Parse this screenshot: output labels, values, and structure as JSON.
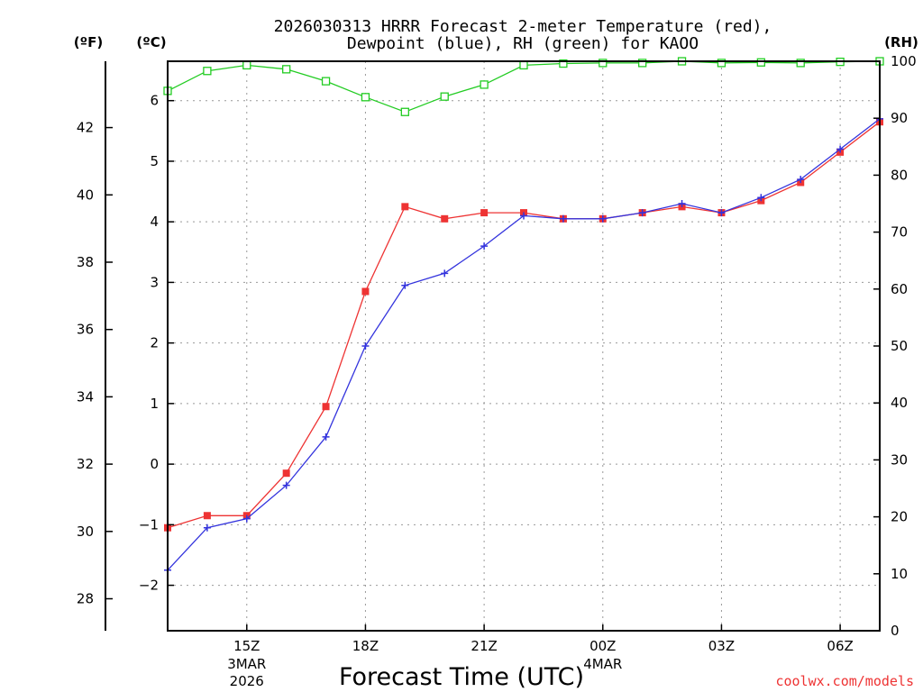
{
  "chart_data": {
    "type": "line",
    "title_line1": "2026030313 HRRR Forecast 2-meter Temperature (red),",
    "title_line2": "Dewpoint (blue), RH (green) for KAOO",
    "units": {
      "fahrenheit": "(ºF)",
      "celsius": "(ºC)",
      "rh": "(RH)"
    },
    "xlabel": "Forecast Time (UTC)",
    "credit": "coolwx.com/models",
    "x_hours": [
      13,
      14,
      15,
      16,
      17,
      18,
      19,
      20,
      21,
      22,
      23,
      24,
      25,
      26,
      27,
      28,
      29,
      30,
      31
    ],
    "x_ticks": [
      {
        "hour": 15,
        "label": "15Z",
        "sub1": "3MAR",
        "sub2": "2026"
      },
      {
        "hour": 18,
        "label": "18Z",
        "sub1": "",
        "sub2": ""
      },
      {
        "hour": 21,
        "label": "21Z",
        "sub1": "",
        "sub2": ""
      },
      {
        "hour": 24,
        "label": "00Z",
        "sub1": "4MAR",
        "sub2": ""
      },
      {
        "hour": 27,
        "label": "03Z",
        "sub1": "",
        "sub2": ""
      },
      {
        "hour": 30,
        "label": "06Z",
        "sub1": "",
        "sub2": ""
      }
    ],
    "celsius_axis": {
      "ylim": [
        -2.75,
        6.65
      ],
      "ticks": [
        -2,
        -1,
        0,
        1,
        2,
        3,
        4,
        5,
        6
      ]
    },
    "fahrenheit_axis": {
      "ylim": [
        27.05,
        43.97
      ],
      "ticks": [
        28,
        30,
        32,
        34,
        36,
        38,
        40,
        42
      ]
    },
    "rh_axis": {
      "ylim": [
        0,
        100
      ],
      "ticks": [
        0,
        10,
        20,
        30,
        40,
        50,
        60,
        70,
        80,
        90,
        100
      ]
    },
    "series": [
      {
        "name": "2-meter Temperature",
        "axis": "celsius",
        "color": "#ee3333",
        "marker": "filled-square",
        "values": [
          -1.05,
          -0.85,
          -0.85,
          -0.15,
          0.95,
          2.85,
          4.25,
          4.05,
          4.15,
          4.15,
          4.05,
          4.05,
          4.15,
          4.25,
          4.15,
          4.35,
          4.65,
          5.15,
          5.65
        ]
      },
      {
        "name": "Dewpoint",
        "axis": "celsius",
        "color": "#3333dd",
        "marker": "plus",
        "values": [
          -1.75,
          -1.05,
          -0.9,
          -0.35,
          0.45,
          1.95,
          2.95,
          3.15,
          3.6,
          4.1,
          4.05,
          4.05,
          4.15,
          4.3,
          4.15,
          4.4,
          4.7,
          5.2,
          5.7
        ]
      },
      {
        "name": "RH",
        "axis": "rh",
        "color": "#22cc22",
        "marker": "open-square",
        "values": [
          94.8,
          98.3,
          99.3,
          98.6,
          96.5,
          93.7,
          91.1,
          93.8,
          95.9,
          99.3,
          99.6,
          99.7,
          99.7,
          100,
          99.7,
          99.8,
          99.7,
          99.9,
          100
        ]
      }
    ]
  }
}
